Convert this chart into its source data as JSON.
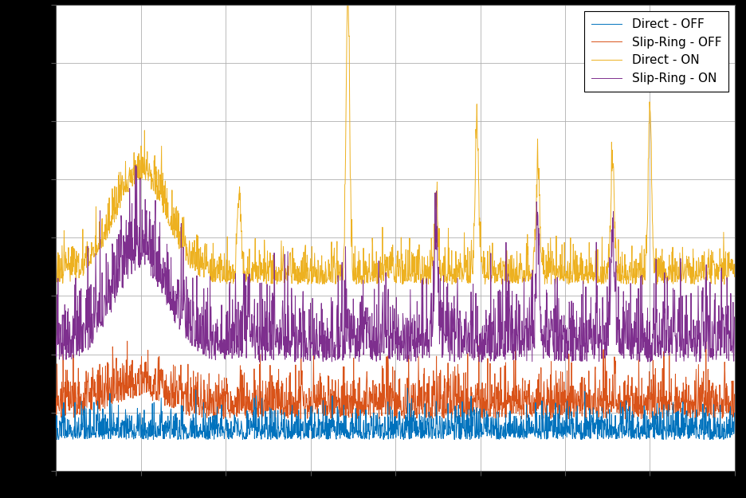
{
  "legend_labels": [
    "Direct - OFF",
    "Slip-Ring - OFF",
    "Direct - ON",
    "Slip-Ring - ON"
  ],
  "line_colors": [
    "#0072bd",
    "#d95319",
    "#edb120",
    "#7e2f8e"
  ],
  "background_color": "#ffffff",
  "fig_background": "#000000",
  "grid_color": "#b0b0b0",
  "n_points": 2000,
  "seed": 42
}
